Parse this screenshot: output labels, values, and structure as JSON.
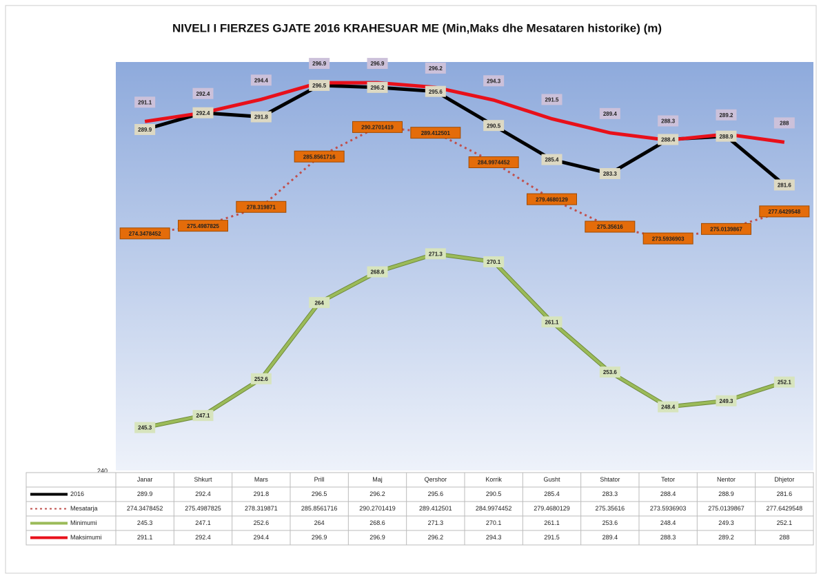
{
  "chart_data": {
    "type": "line",
    "title": "NIVELI I FIERZES GJATE 2016 KRAHESUAR ME (Min,Maks dhe Mesataren historike) (m)",
    "categories": [
      "Janar",
      "Shkurt",
      "Mars",
      "Prill",
      "Maj",
      "Qershor",
      "Korrik",
      "Gusht",
      "Shtator",
      "Tetor",
      "Nentor",
      "Dhjetor"
    ],
    "series": [
      {
        "name": "2016",
        "color": "#000000",
        "label_color": "#ddd9c3",
        "dashed": false,
        "values": [
          289.9,
          292.4,
          291.8,
          296.5,
          296.2,
          295.6,
          290.5,
          285.4,
          283.3,
          288.4,
          288.9,
          281.6
        ]
      },
      {
        "name": "Mesatarja",
        "color": "#c0504d",
        "label_color": "#e46c0a",
        "dashed": true,
        "values": [
          274.3478452,
          275.4987825,
          278.319871,
          285.8561716,
          290.2701419,
          289.412501,
          284.9974452,
          279.4680129,
          275.35616,
          273.5936903,
          275.0139867,
          277.6429548
        ]
      },
      {
        "name": "Minimumi",
        "color": "#9bbb59",
        "label_color": "#d7e4bd",
        "dashed": false,
        "values": [
          245.3,
          247.1,
          252.6,
          264,
          268.6,
          271.3,
          270.1,
          261.1,
          253.6,
          248.4,
          249.3,
          252.1
        ]
      },
      {
        "name": "Maksimumi",
        "color": "#e8101a",
        "label_color": "#ccc1da",
        "dashed": false,
        "values": [
          291.1,
          292.4,
          294.4,
          296.9,
          296.9,
          296.2,
          294.3,
          291.5,
          289.4,
          288.3,
          289.2,
          288
        ]
      }
    ],
    "ylim": [
      240,
      300
    ],
    "yticks": [
      240
    ]
  }
}
